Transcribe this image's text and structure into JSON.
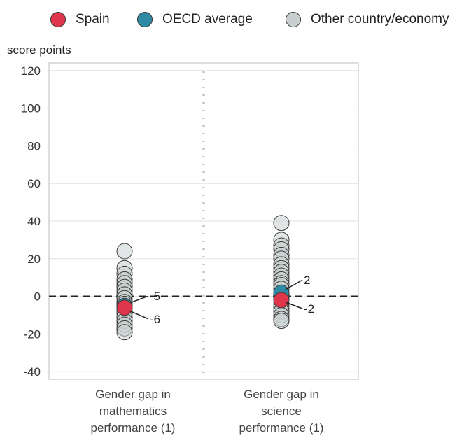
{
  "legend": {
    "items": [
      {
        "label": "Spain",
        "color": "#e0364c"
      },
      {
        "label": "OECD average",
        "color": "#2f8aa6"
      },
      {
        "label": "Other country/economy",
        "color": "#c9cfcf"
      }
    ]
  },
  "chart_data": {
    "type": "scatter",
    "ylabel": "score points",
    "ylim": [
      -44,
      124
    ],
    "yticks": [
      120,
      100,
      80,
      60,
      40,
      20,
      0,
      -20,
      -40
    ],
    "grid": true,
    "legend_position": "top",
    "reference_line_y": 0,
    "categories": [
      "Gender gap in mathematics performance (1)",
      "Gender gap in science performance (1)"
    ],
    "category_lines": [
      [
        "Gender gap in",
        "mathematics",
        "performance (1)"
      ],
      [
        "Gender gap in",
        "science",
        "performance (1)"
      ]
    ],
    "series": [
      {
        "name": "Other country/economy",
        "color": "#c9cfcf",
        "points": [
          {
            "category": 0,
            "values": [
              24,
              15,
              12,
              9,
              7,
              5,
              3,
              1,
              -1,
              -3,
              -4,
              -6,
              -8,
              -9,
              -11,
              -13,
              -15,
              -17,
              -19
            ]
          },
          {
            "category": 1,
            "values": [
              39,
              30,
              27,
              25,
              22,
              20,
              17,
              15,
              13,
              11,
              9,
              7,
              6,
              4,
              1,
              -1,
              -4,
              -6,
              -8,
              -10,
              -12,
              -13
            ]
          }
        ]
      },
      {
        "name": "OECD average",
        "color": "#2f8aa6",
        "points": [
          {
            "category": 0,
            "value": -5,
            "label": "-5"
          },
          {
            "category": 1,
            "value": 2,
            "label": "2"
          }
        ]
      },
      {
        "name": "Spain",
        "color": "#e0364c",
        "points": [
          {
            "category": 0,
            "value": -6,
            "label": "-6"
          },
          {
            "category": 1,
            "value": -2,
            "label": "-2"
          }
        ]
      }
    ]
  }
}
